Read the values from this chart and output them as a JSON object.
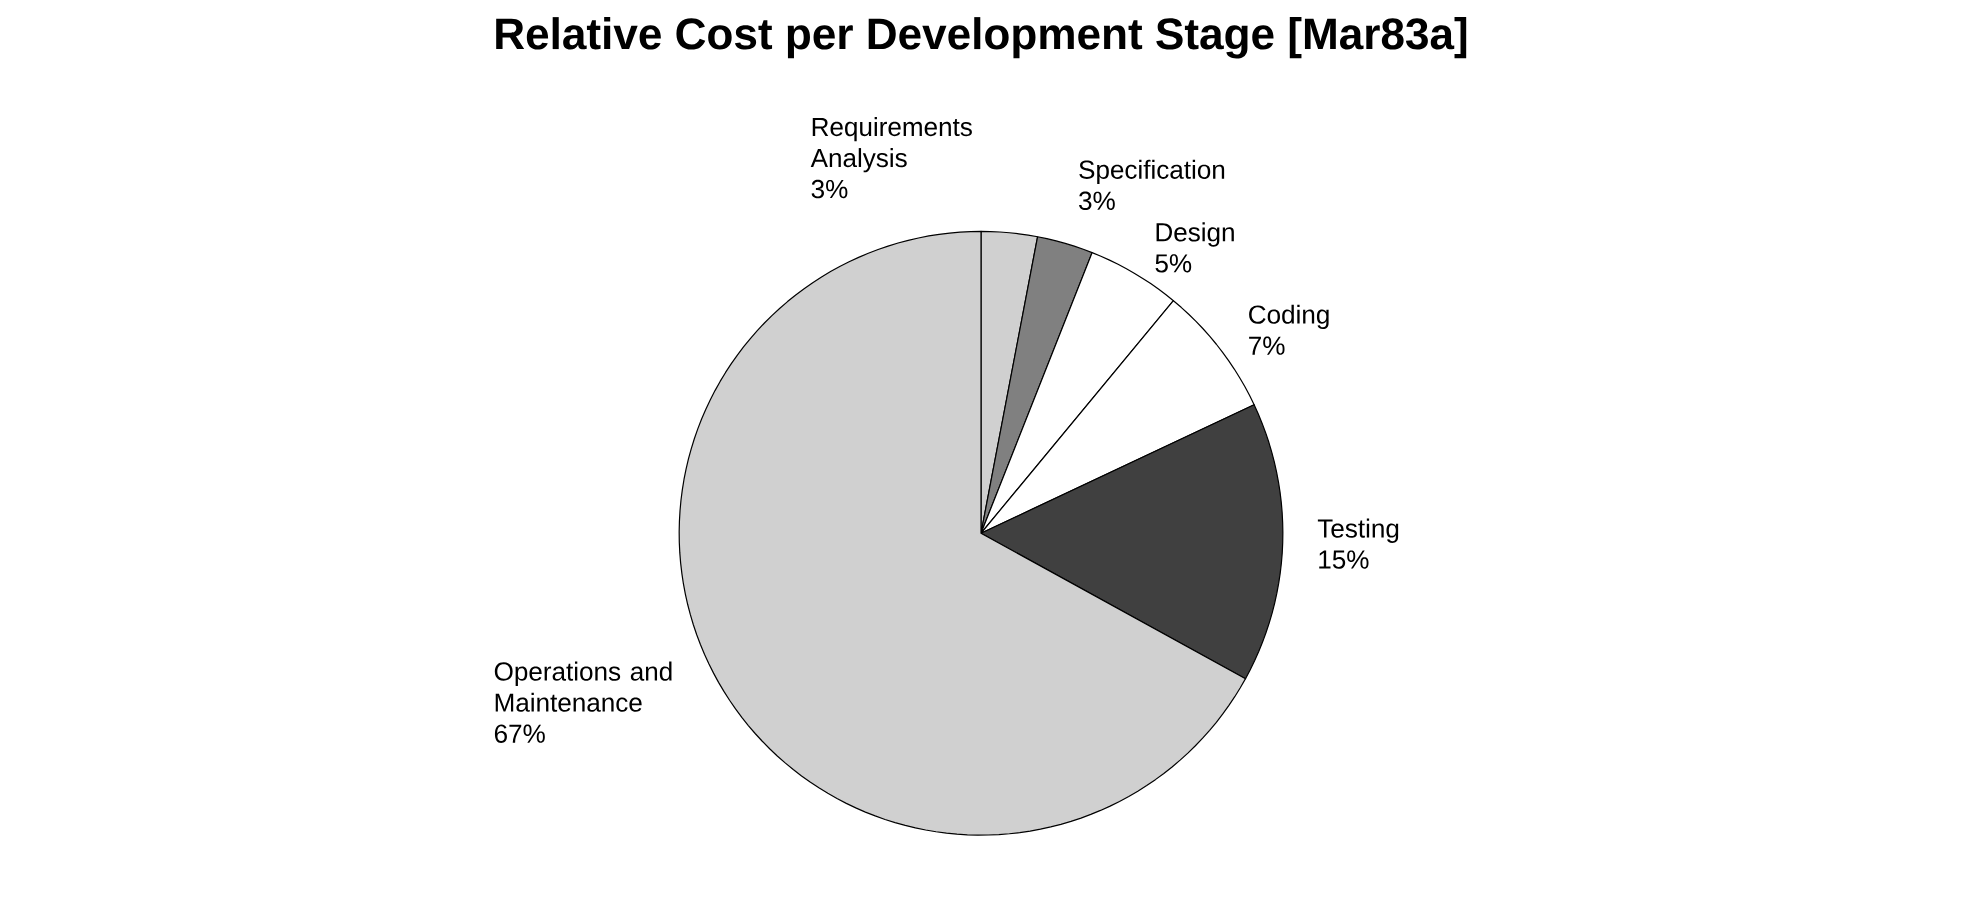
{
  "chart_data": {
    "type": "pie",
    "title": "Relative Cost per Development Stage [Mar83a]",
    "categories": [
      "Requirements Analysis",
      "Specification",
      "Design",
      "Coding",
      "Testing",
      "Operations and Maintenance"
    ],
    "values": [
      3,
      3,
      5,
      7,
      15,
      67
    ],
    "value_labels": [
      "3%",
      "3%",
      "5%",
      "7%",
      "15%",
      "67%"
    ],
    "colors": [
      "#d0d0d0",
      "#808080",
      "#ffffff",
      "#ffffff",
      "#404040",
      "#d0d0d0"
    ]
  }
}
